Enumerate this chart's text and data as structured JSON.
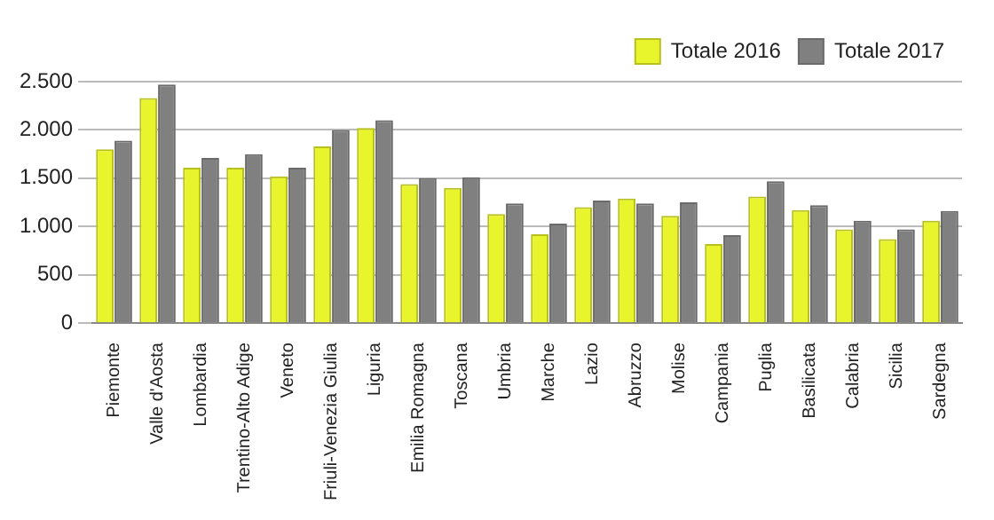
{
  "chart_data": {
    "type": "bar",
    "categories": [
      "Piemonte",
      "Valle d'Aosta",
      "Lombardia",
      "Trentino-Alto Adige",
      "Veneto",
      "Friuli-Venezia Giulia",
      "Liguria",
      "Emilia Romagna",
      "Toscana",
      "Umbria",
      "Marche",
      "Lazio",
      "Abruzzo",
      "Molise",
      "Campania",
      "Puglia",
      "Basilicata",
      "Calabria",
      "Sicilia",
      "Sardegna"
    ],
    "series": [
      {
        "name": "Totale 2016",
        "color": "#e9f52c",
        "values": [
          1800,
          2330,
          1610,
          1610,
          1520,
          1830,
          2020,
          1440,
          1400,
          1130,
          920,
          1200,
          1290,
          1110,
          820,
          1310,
          1170,
          970,
          870,
          1060
        ]
      },
      {
        "name": "Totale 2017",
        "color": "#808080",
        "values": [
          1890,
          2470,
          1710,
          1750,
          1610,
          2000,
          2100,
          1500,
          1510,
          1240,
          1030,
          1270,
          1240,
          1250,
          910,
          1470,
          1220,
          1060,
          970,
          1160
        ]
      }
    ],
    "ylim": [
      0,
      2500
    ],
    "yticks": [
      {
        "value": 0,
        "label": "0"
      },
      {
        "value": 500,
        "label": "500"
      },
      {
        "value": 1000,
        "label": "1.000"
      },
      {
        "value": 1500,
        "label": "1.500"
      },
      {
        "value": 2000,
        "label": "2.000"
      },
      {
        "value": 2500,
        "label": "2.500"
      }
    ],
    "grid": "y",
    "legend": "top right"
  }
}
